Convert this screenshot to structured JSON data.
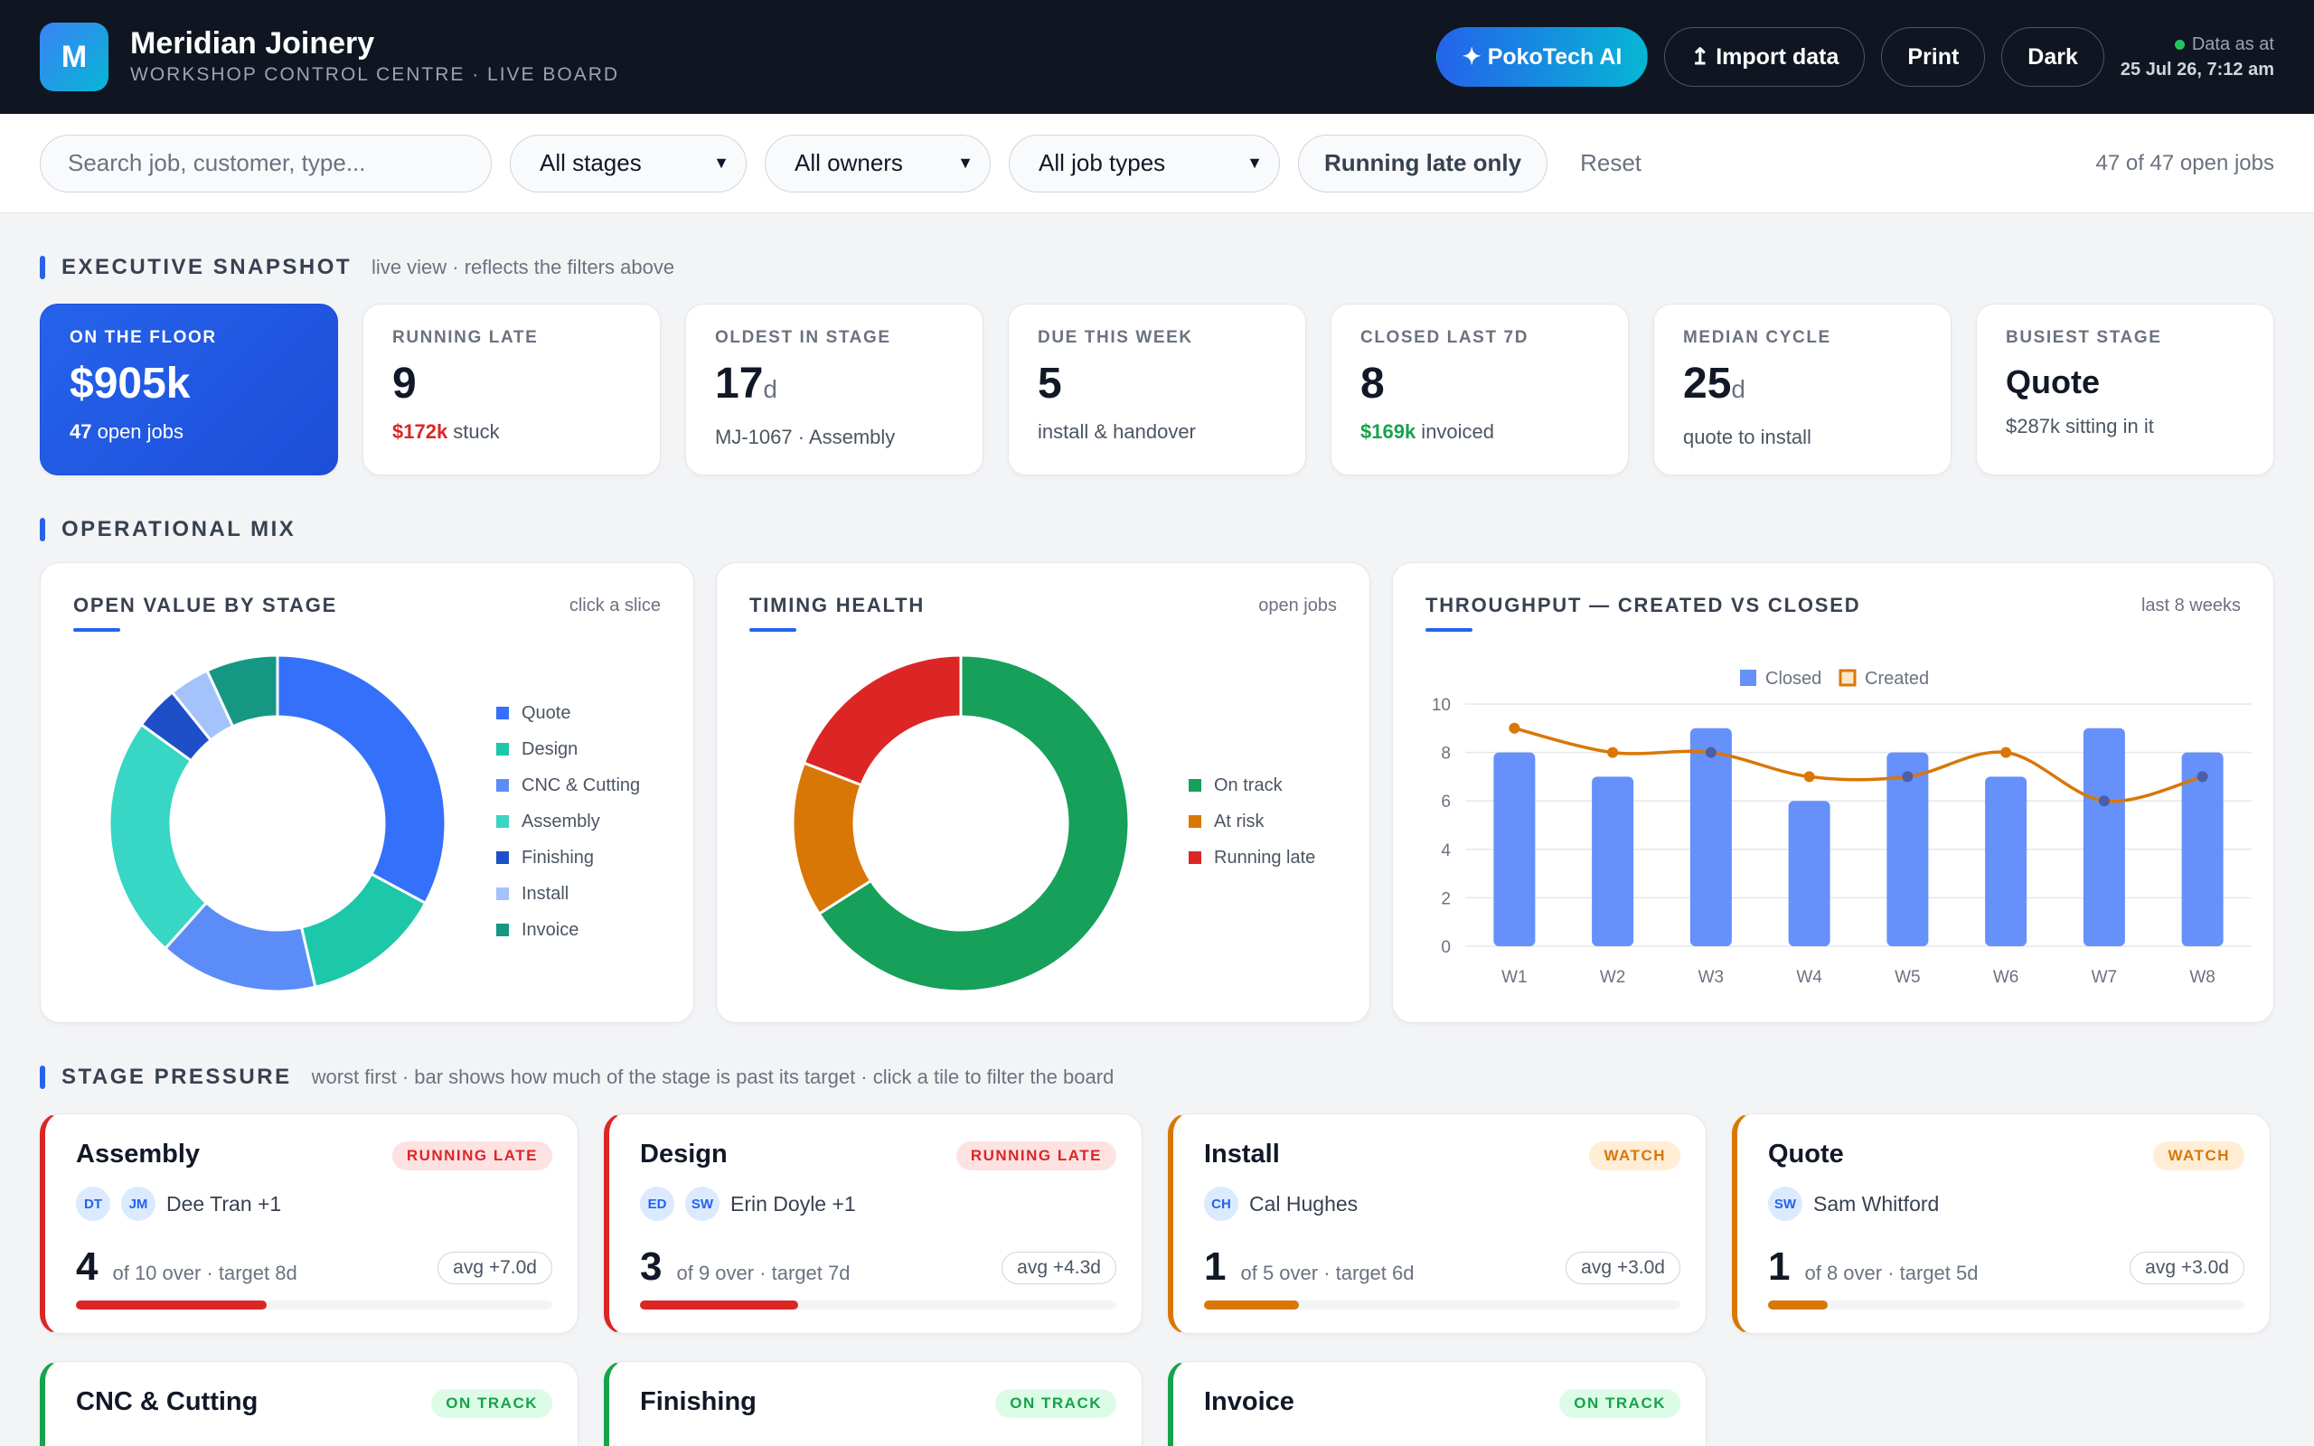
{
  "header": {
    "logo_letter": "M",
    "title": "Meridian Joinery",
    "subtitle": "WORKSHOP CONTROL CENTRE · LIVE BOARD",
    "ai_label": "✦ PokoTech AI",
    "import_label": "↥ Import data",
    "print_label": "Print",
    "dark_label": "Dark",
    "data_as_of_label": "Data as at",
    "data_as_of_value": "25 Jul 26, 7:12 am"
  },
  "filters": {
    "search_placeholder": "Search job, customer, type...",
    "stage": "All stages",
    "owner": "All owners",
    "job_type": "All job types",
    "late_toggle": "Running late only",
    "reset": "Reset",
    "count": "47 of 47 open jobs"
  },
  "snapshot": {
    "title": "EXECUTIVE SNAPSHOT",
    "note": "live view · reflects the filters above",
    "kpis": [
      {
        "label": "ON THE FLOOR",
        "value": "$905k",
        "sub_strong": "47",
        "sub": " open jobs"
      },
      {
        "label": "RUNNING LATE",
        "value": "9",
        "sub_strong": "$172k",
        "sub": " stuck"
      },
      {
        "label": "OLDEST IN STAGE",
        "value": "17",
        "unit": "d",
        "sub": "MJ-1067 · Assembly"
      },
      {
        "label": "DUE THIS WEEK",
        "value": "5",
        "sub": "install & handover"
      },
      {
        "label": "CLOSED LAST 7D",
        "value": "8",
        "sub_strong": "$169k",
        "sub": " invoiced"
      },
      {
        "label": "MEDIAN CYCLE",
        "value": "25",
        "unit": "d",
        "sub": "quote to install"
      },
      {
        "label": "BUSIEST STAGE",
        "value": "Quote",
        "sub": "$287k sitting in it"
      }
    ]
  },
  "mix": {
    "title": "OPERATIONAL MIX",
    "donut1": {
      "title": "OPEN VALUE BY STAGE",
      "note": "click a slice"
    },
    "donut2": {
      "title": "TIMING HEALTH",
      "note": "open jobs"
    },
    "throughput": {
      "title": "THROUGHPUT — CREATED VS CLOSED",
      "note": "last 8 weeks"
    }
  },
  "chart_data": [
    {
      "type": "pie",
      "title": "OPEN VALUE BY STAGE",
      "categories": [
        "Quote",
        "Design",
        "CNC & Cutting",
        "Assembly",
        "Finishing",
        "Install",
        "Invoice"
      ],
      "values": [
        287,
        118,
        133,
        204,
        37,
        34,
        60
      ],
      "colors": [
        "#3570fb",
        "#1dc7aa",
        "#5b8cf8",
        "#38d6c4",
        "#1e4fc8",
        "#a4c2fb",
        "#159784"
      ]
    },
    {
      "type": "pie",
      "title": "TIMING HEALTH",
      "categories": [
        "On track",
        "At risk",
        "Running late"
      ],
      "values": [
        31,
        7,
        9
      ],
      "colors": [
        "#16a05a",
        "#d97706",
        "#dc2626"
      ]
    },
    {
      "type": "bar",
      "title": "THROUGHPUT — CREATED VS CLOSED",
      "categories": [
        "W1",
        "W2",
        "W3",
        "W4",
        "W5",
        "W6",
        "W7",
        "W8"
      ],
      "series": [
        {
          "name": "Closed",
          "kind": "bar",
          "color": "#6690fa",
          "values": [
            8,
            7,
            9,
            6,
            8,
            7,
            9,
            8
          ]
        },
        {
          "name": "Created",
          "kind": "line",
          "color": "#d97706",
          "values": [
            9,
            8,
            8,
            7,
            7,
            8,
            6,
            7
          ]
        }
      ],
      "ylim": [
        0,
        10
      ],
      "yticks": [
        "0",
        "2",
        "4",
        "6",
        "8",
        "10"
      ],
      "legend": "top-center",
      "grid": true
    }
  ],
  "pressure": {
    "title": "STAGE PRESSURE",
    "note": "worst first · bar shows how much of the stage is past its target · click a tile to filter the board",
    "tiles": [
      {
        "name": "Assembly",
        "status": "RUNNING LATE",
        "owners": [
          "DT",
          "JM"
        ],
        "owner_text": "Dee Tran +1",
        "over": "4",
        "detail": "of 10 over · target 8d",
        "avg": "avg +7.0d",
        "fraction": 0.4
      },
      {
        "name": "Design",
        "status": "RUNNING LATE",
        "owners": [
          "ED",
          "SW"
        ],
        "owner_text": "Erin Doyle +1",
        "over": "3",
        "detail": "of 9 over · target 7d",
        "avg": "avg +4.3d",
        "fraction": 0.333
      },
      {
        "name": "Install",
        "status": "WATCH",
        "owners": [
          "CH"
        ],
        "owner_text": "Cal Hughes",
        "over": "1",
        "detail": "of 5 over · target 6d",
        "avg": "avg +3.0d",
        "fraction": 0.2
      },
      {
        "name": "Quote",
        "status": "WATCH",
        "owners": [
          "SW"
        ],
        "owner_text": "Sam Whitford",
        "over": "1",
        "detail": "of 8 over · target 5d",
        "avg": "avg +3.0d",
        "fraction": 0.125
      },
      {
        "name": "CNC & Cutting",
        "status": "ON TRACK"
      },
      {
        "name": "Finishing",
        "status": "ON TRACK"
      },
      {
        "name": "Invoice",
        "status": "ON TRACK"
      }
    ]
  }
}
